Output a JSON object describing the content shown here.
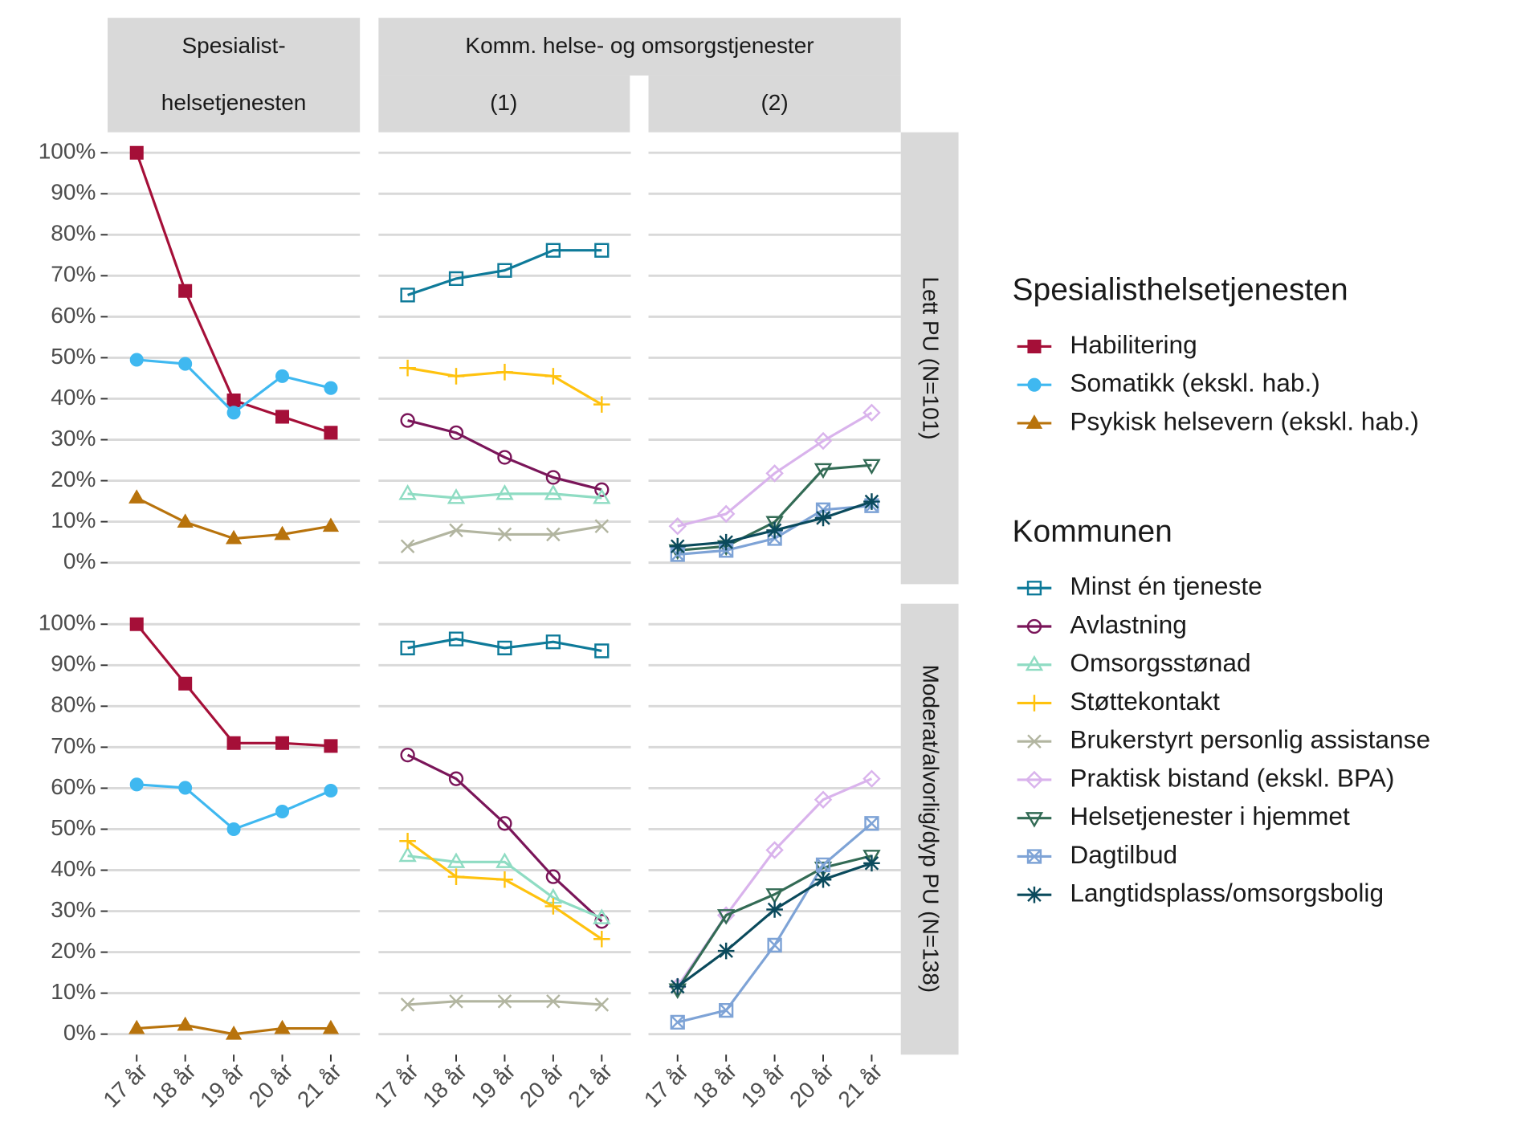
{
  "column_strips": {
    "spesialist": [
      "Spesialist-",
      "helsetjenesten"
    ],
    "kommune": "Komm. helse- og omsorgstjenester",
    "kommune_parts": [
      "(1)",
      "(2)"
    ]
  },
  "row_strips": [
    "Lett PU (N=101)",
    "Moderat/alvorlig/dyp PU (N=138)"
  ],
  "legends": [
    {
      "title": "Spesialisthelsetjenesten"
    },
    {
      "title": "Kommunen"
    }
  ],
  "chart_data": [
    {
      "type": "line",
      "categories": [
        "17 år",
        "18 år",
        "19 år",
        "20 år",
        "21 år"
      ],
      "ylim": [
        -5,
        105
      ],
      "grid": true,
      "yticks": [
        {
          "value": 0,
          "label": "0%"
        },
        {
          "value": 10,
          "label": "10%"
        },
        {
          "value": 20,
          "label": "20%"
        },
        {
          "value": 30,
          "label": "30%"
        },
        {
          "value": 40,
          "label": "40%"
        },
        {
          "value": 50,
          "label": "50%"
        },
        {
          "value": 60,
          "label": "60%"
        },
        {
          "value": 70,
          "label": "70%"
        },
        {
          "value": 80,
          "label": "80%"
        },
        {
          "value": 90,
          "label": "90%"
        },
        {
          "value": 100,
          "label": "100%"
        }
      ],
      "series": [
        {
          "name": "Habilitering",
          "color": "#a50f38",
          "marker": "square",
          "values": [
            100,
            66.3,
            39.6,
            35.6,
            31.7
          ]
        },
        {
          "name": "Somatikk (ekskl. hab.)",
          "color": "#3fb8f0",
          "marker": "circle",
          "values": [
            49.5,
            48.5,
            36.6,
            45.5,
            42.6
          ]
        },
        {
          "name": "Psykisk helsevern (ekskl. hab.)",
          "color": "#b8730c",
          "marker": "triangle",
          "values": [
            15.8,
            9.9,
            5.9,
            6.9,
            8.9
          ]
        }
      ]
    },
    {
      "type": "line",
      "categories": [
        "17 år",
        "18 år",
        "19 år",
        "20 år",
        "21 år"
      ],
      "ylim": [
        -5,
        105
      ],
      "grid": true,
      "yticks": [
        {
          "value": 0,
          "label": "0%"
        },
        {
          "value": 10,
          "label": "10%"
        },
        {
          "value": 20,
          "label": "20%"
        },
        {
          "value": 30,
          "label": "30%"
        },
        {
          "value": 40,
          "label": "40%"
        },
        {
          "value": 50,
          "label": "50%"
        },
        {
          "value": 60,
          "label": "60%"
        },
        {
          "value": 70,
          "label": "70%"
        },
        {
          "value": 80,
          "label": "80%"
        },
        {
          "value": 90,
          "label": "90%"
        },
        {
          "value": 100,
          "label": "100%"
        }
      ],
      "series": [
        {
          "name": "Minst én tjeneste",
          "color": "#0e7a99",
          "marker": "square-open",
          "values": [
            65.3,
            69.3,
            71.3,
            76.2,
            76.2
          ]
        },
        {
          "name": "Avlastning",
          "color": "#7a1559",
          "marker": "circle-open",
          "values": [
            34.7,
            31.7,
            25.7,
            20.8,
            17.8
          ]
        },
        {
          "name": "Omsorgsstønad",
          "color": "#8fdcc3",
          "marker": "triangle-open",
          "values": [
            16.8,
            15.8,
            16.8,
            16.8,
            15.8
          ]
        },
        {
          "name": "Støttekontakt",
          "color": "#ffc20e",
          "marker": "plus",
          "values": [
            47.5,
            45.5,
            46.5,
            45.5,
            38.6
          ]
        },
        {
          "name": "Brukerstyrt personlig assistanse",
          "color": "#b2b5a0",
          "marker": "cross",
          "values": [
            4,
            7.9,
            6.9,
            6.9,
            8.9
          ]
        }
      ]
    },
    {
      "type": "line",
      "categories": [
        "17 år",
        "18 år",
        "19 år",
        "20 år",
        "21 år"
      ],
      "ylim": [
        -5,
        105
      ],
      "grid": true,
      "yticks": [
        {
          "value": 0,
          "label": "0%"
        },
        {
          "value": 10,
          "label": "10%"
        },
        {
          "value": 20,
          "label": "20%"
        },
        {
          "value": 30,
          "label": "30%"
        },
        {
          "value": 40,
          "label": "40%"
        },
        {
          "value": 50,
          "label": "50%"
        },
        {
          "value": 60,
          "label": "60%"
        },
        {
          "value": 70,
          "label": "70%"
        },
        {
          "value": 80,
          "label": "80%"
        },
        {
          "value": 90,
          "label": "90%"
        },
        {
          "value": 100,
          "label": "100%"
        }
      ],
      "series": [
        {
          "name": "Praktisk bistand (ekskl. BPA)",
          "color": "#d9b3ec",
          "marker": "diamond-open",
          "values": [
            8.9,
            11.9,
            21.8,
            29.7,
            36.6
          ]
        },
        {
          "name": "Helsetjenester i hjemmet",
          "color": "#336b55",
          "marker": "triangle-down-open",
          "values": [
            3,
            4,
            9.9,
            22.8,
            23.8
          ]
        },
        {
          "name": "Dagtilbud",
          "color": "#7ea3d6",
          "marker": "square-cross",
          "values": [
            2,
            3,
            5.9,
            12.9,
            13.9
          ]
        },
        {
          "name": "Langtidsplass/omsorgsbolig",
          "color": "#0a4a5c",
          "marker": "asterisk",
          "values": [
            4,
            5,
            7.9,
            10.9,
            14.9
          ]
        }
      ]
    },
    {
      "type": "line",
      "categories": [
        "17 år",
        "18 år",
        "19 år",
        "20 år",
        "21 år"
      ],
      "ylim": [
        -5,
        105
      ],
      "grid": true,
      "yticks": [
        {
          "value": 0,
          "label": "0%"
        },
        {
          "value": 10,
          "label": "10%"
        },
        {
          "value": 20,
          "label": "20%"
        },
        {
          "value": 30,
          "label": "30%"
        },
        {
          "value": 40,
          "label": "40%"
        },
        {
          "value": 50,
          "label": "50%"
        },
        {
          "value": 60,
          "label": "60%"
        },
        {
          "value": 70,
          "label": "70%"
        },
        {
          "value": 80,
          "label": "80%"
        },
        {
          "value": 90,
          "label": "90%"
        },
        {
          "value": 100,
          "label": "100%"
        }
      ],
      "series": [
        {
          "name": "Habilitering",
          "color": "#a50f38",
          "marker": "square",
          "values": [
            100,
            85.5,
            71,
            71,
            70.3
          ]
        },
        {
          "name": "Somatikk (ekskl. hab.)",
          "color": "#3fb8f0",
          "marker": "circle",
          "values": [
            60.9,
            60.1,
            50,
            54.3,
            59.4
          ]
        },
        {
          "name": "Psykisk helsevern (ekskl. hab.)",
          "color": "#b8730c",
          "marker": "triangle",
          "values": [
            1.4,
            2.2,
            0,
            1.4,
            1.4
          ]
        }
      ]
    },
    {
      "type": "line",
      "categories": [
        "17 år",
        "18 år",
        "19 år",
        "20 år",
        "21 år"
      ],
      "ylim": [
        -5,
        105
      ],
      "grid": true,
      "yticks": [
        {
          "value": 0,
          "label": "0%"
        },
        {
          "value": 10,
          "label": "10%"
        },
        {
          "value": 20,
          "label": "20%"
        },
        {
          "value": 30,
          "label": "30%"
        },
        {
          "value": 40,
          "label": "40%"
        },
        {
          "value": 50,
          "label": "50%"
        },
        {
          "value": 60,
          "label": "60%"
        },
        {
          "value": 70,
          "label": "70%"
        },
        {
          "value": 80,
          "label": "80%"
        },
        {
          "value": 90,
          "label": "90%"
        },
        {
          "value": 100,
          "label": "100%"
        }
      ],
      "series": [
        {
          "name": "Minst én tjeneste",
          "color": "#0e7a99",
          "marker": "square-open",
          "values": [
            94.2,
            96.4,
            94.2,
            95.7,
            93.5
          ]
        },
        {
          "name": "Avlastning",
          "color": "#7a1559",
          "marker": "circle-open",
          "values": [
            68.1,
            62.3,
            51.4,
            38.4,
            27.5
          ]
        },
        {
          "name": "Omsorgsstønad",
          "color": "#8fdcc3",
          "marker": "triangle-open",
          "values": [
            43.5,
            42,
            42,
            33.3,
            28.3
          ]
        },
        {
          "name": "Støttekontakt",
          "color": "#ffc20e",
          "marker": "plus",
          "values": [
            47.1,
            38.4,
            37.7,
            31.2,
            23.2
          ]
        },
        {
          "name": "Brukerstyrt personlig assistanse",
          "color": "#b2b5a0",
          "marker": "cross",
          "values": [
            7.2,
            8,
            8,
            8,
            7.2
          ]
        }
      ]
    },
    {
      "type": "line",
      "categories": [
        "17 år",
        "18 år",
        "19 år",
        "20 år",
        "21 år"
      ],
      "ylim": [
        -5,
        105
      ],
      "grid": true,
      "yticks": [
        {
          "value": 0,
          "label": "0%"
        },
        {
          "value": 10,
          "label": "10%"
        },
        {
          "value": 20,
          "label": "20%"
        },
        {
          "value": 30,
          "label": "30%"
        },
        {
          "value": 40,
          "label": "40%"
        },
        {
          "value": 50,
          "label": "50%"
        },
        {
          "value": 60,
          "label": "60%"
        },
        {
          "value": 70,
          "label": "70%"
        },
        {
          "value": 80,
          "label": "80%"
        },
        {
          "value": 90,
          "label": "90%"
        },
        {
          "value": 100,
          "label": "100%"
        }
      ],
      "series": [
        {
          "name": "Praktisk bistand (ekskl. BPA)",
          "color": "#d9b3ec",
          "marker": "diamond-open",
          "values": [
            11.6,
            29,
            44.9,
            57.2,
            62.3
          ]
        },
        {
          "name": "Helsetjenester i hjemmet",
          "color": "#336b55",
          "marker": "triangle-down-open",
          "values": [
            10.9,
            29,
            34.1,
            40.6,
            43.5
          ]
        },
        {
          "name": "Dagtilbud",
          "color": "#7ea3d6",
          "marker": "square-cross",
          "values": [
            2.9,
            5.8,
            21.7,
            41.3,
            51.4
          ]
        },
        {
          "name": "Langtidsplass/omsorgsbolig",
          "color": "#0a4a5c",
          "marker": "asterisk",
          "values": [
            11.6,
            20.3,
            30.4,
            37.7,
            41.7
          ]
        }
      ]
    }
  ]
}
